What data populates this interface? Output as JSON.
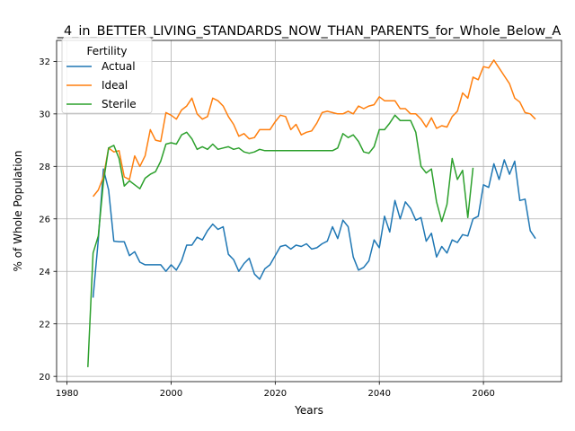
{
  "chart_data": {
    "type": "line",
    "title": "_4_in_BETTER_LIVING_STANDARDS_NOW_THAN_PARENTS_for_Whole_Below_A",
    "xlabel": "Years",
    "ylabel": "% of Whole Population",
    "xlim": [
      1978,
      2075
    ],
    "ylim": [
      19.8,
      32.8
    ],
    "xticks": [
      1980,
      2000,
      2020,
      2040,
      2060
    ],
    "yticks": [
      20,
      22,
      24,
      26,
      28,
      30,
      32
    ],
    "grid": true,
    "legend": {
      "title": "Fertility",
      "position": "top-left"
    },
    "series": [
      {
        "name": "Actual",
        "color": "#1f77b4",
        "points": [
          [
            1985,
            23.0
          ],
          [
            1986,
            25.2
          ],
          [
            1987,
            27.9
          ],
          [
            1988,
            27.1
          ],
          [
            1989,
            25.15
          ],
          [
            1990,
            25.13
          ],
          [
            1991,
            25.13
          ],
          [
            1992,
            24.6
          ],
          [
            1993,
            24.75
          ],
          [
            1994,
            24.35
          ],
          [
            1995,
            24.25
          ],
          [
            1996,
            24.25
          ],
          [
            1997,
            24.25
          ],
          [
            1998,
            24.25
          ],
          [
            1999,
            24.0
          ],
          [
            2000,
            24.25
          ],
          [
            2001,
            24.05
          ],
          [
            2002,
            24.4
          ],
          [
            2003,
            25.0
          ],
          [
            2004,
            25.0
          ],
          [
            2005,
            25.3
          ],
          [
            2006,
            25.2
          ],
          [
            2007,
            25.55
          ],
          [
            2008,
            25.8
          ],
          [
            2009,
            25.6
          ],
          [
            2010,
            25.7
          ],
          [
            2011,
            24.65
          ],
          [
            2012,
            24.45
          ],
          [
            2013,
            24.0
          ],
          [
            2014,
            24.3
          ],
          [
            2015,
            24.5
          ],
          [
            2016,
            23.9
          ],
          [
            2017,
            23.7
          ],
          [
            2018,
            24.1
          ],
          [
            2019,
            24.25
          ],
          [
            2020,
            24.6
          ],
          [
            2021,
            24.95
          ],
          [
            2022,
            25.0
          ],
          [
            2023,
            24.85
          ],
          [
            2024,
            25.0
          ],
          [
            2025,
            24.95
          ],
          [
            2026,
            25.05
          ],
          [
            2027,
            24.85
          ],
          [
            2028,
            24.9
          ],
          [
            2029,
            25.05
          ],
          [
            2030,
            25.15
          ],
          [
            2031,
            25.7
          ],
          [
            2032,
            25.25
          ],
          [
            2033,
            25.95
          ],
          [
            2034,
            25.7
          ],
          [
            2035,
            24.55
          ],
          [
            2036,
            24.05
          ],
          [
            2037,
            24.15
          ],
          [
            2038,
            24.4
          ],
          [
            2039,
            25.2
          ],
          [
            2040,
            24.9
          ],
          [
            2041,
            26.1
          ],
          [
            2042,
            25.5
          ],
          [
            2043,
            26.7
          ],
          [
            2044,
            26.0
          ],
          [
            2045,
            26.65
          ],
          [
            2046,
            26.4
          ],
          [
            2047,
            25.95
          ],
          [
            2048,
            26.05
          ],
          [
            2049,
            25.15
          ],
          [
            2050,
            25.45
          ],
          [
            2051,
            24.55
          ],
          [
            2052,
            24.95
          ],
          [
            2053,
            24.7
          ],
          [
            2054,
            25.2
          ],
          [
            2055,
            25.1
          ],
          [
            2056,
            25.4
          ],
          [
            2057,
            25.35
          ],
          [
            2058,
            26.0
          ],
          [
            2059,
            26.1
          ],
          [
            2060,
            27.3
          ],
          [
            2061,
            27.2
          ],
          [
            2062,
            28.1
          ],
          [
            2063,
            27.5
          ],
          [
            2064,
            28.25
          ],
          [
            2065,
            27.7
          ],
          [
            2066,
            28.2
          ],
          [
            2067,
            26.7
          ],
          [
            2068,
            26.75
          ],
          [
            2069,
            25.55
          ],
          [
            2070,
            25.25
          ]
        ]
      },
      {
        "name": "Ideal",
        "color": "#ff7f0e",
        "points": [
          [
            1985,
            26.85
          ],
          [
            1986,
            27.1
          ],
          [
            1987,
            27.6
          ],
          [
            1988,
            28.7
          ],
          [
            1989,
            28.55
          ],
          [
            1990,
            28.6
          ],
          [
            1991,
            27.6
          ],
          [
            1992,
            27.5
          ],
          [
            1993,
            28.4
          ],
          [
            1994,
            28.0
          ],
          [
            1995,
            28.4
          ],
          [
            1996,
            29.4
          ],
          [
            1997,
            29.0
          ],
          [
            1998,
            28.95
          ],
          [
            1999,
            30.05
          ],
          [
            2000,
            29.95
          ],
          [
            2001,
            29.8
          ],
          [
            2002,
            30.15
          ],
          [
            2003,
            30.3
          ],
          [
            2004,
            30.6
          ],
          [
            2005,
            30.0
          ],
          [
            2006,
            29.8
          ],
          [
            2007,
            29.9
          ],
          [
            2008,
            30.6
          ],
          [
            2009,
            30.5
          ],
          [
            2010,
            30.3
          ],
          [
            2011,
            29.9
          ],
          [
            2012,
            29.6
          ],
          [
            2013,
            29.15
          ],
          [
            2014,
            29.25
          ],
          [
            2015,
            29.05
          ],
          [
            2016,
            29.1
          ],
          [
            2017,
            29.4
          ],
          [
            2018,
            29.4
          ],
          [
            2019,
            29.4
          ],
          [
            2020,
            29.7
          ],
          [
            2021,
            29.95
          ],
          [
            2022,
            29.9
          ],
          [
            2023,
            29.4
          ],
          [
            2024,
            29.6
          ],
          [
            2025,
            29.2
          ],
          [
            2026,
            29.3
          ],
          [
            2027,
            29.35
          ],
          [
            2028,
            29.65
          ],
          [
            2029,
            30.05
          ],
          [
            2030,
            30.1
          ],
          [
            2031,
            30.05
          ],
          [
            2032,
            30.0
          ],
          [
            2033,
            30.0
          ],
          [
            2034,
            30.1
          ],
          [
            2035,
            30.0
          ],
          [
            2036,
            30.3
          ],
          [
            2037,
            30.2
          ],
          [
            2038,
            30.3
          ],
          [
            2039,
            30.35
          ],
          [
            2040,
            30.65
          ],
          [
            2041,
            30.5
          ],
          [
            2042,
            30.5
          ],
          [
            2043,
            30.5
          ],
          [
            2044,
            30.2
          ],
          [
            2045,
            30.2
          ],
          [
            2046,
            30.0
          ],
          [
            2047,
            30.0
          ],
          [
            2048,
            29.8
          ],
          [
            2049,
            29.5
          ],
          [
            2050,
            29.85
          ],
          [
            2051,
            29.45
          ],
          [
            2052,
            29.55
          ],
          [
            2053,
            29.5
          ],
          [
            2054,
            29.9
          ],
          [
            2055,
            30.1
          ],
          [
            2056,
            30.8
          ],
          [
            2057,
            30.6
          ],
          [
            2058,
            31.4
          ],
          [
            2059,
            31.3
          ],
          [
            2060,
            31.8
          ],
          [
            2061,
            31.75
          ],
          [
            2062,
            32.05
          ],
          [
            2063,
            31.75
          ],
          [
            2064,
            31.45
          ],
          [
            2065,
            31.15
          ],
          [
            2066,
            30.6
          ],
          [
            2067,
            30.45
          ],
          [
            2068,
            30.05
          ],
          [
            2069,
            30.0
          ],
          [
            2070,
            29.8
          ]
        ]
      },
      {
        "name": "Sterile",
        "color": "#2ca02c",
        "points": [
          [
            1984,
            20.35
          ],
          [
            1985,
            24.7
          ],
          [
            1986,
            25.35
          ],
          [
            1987,
            27.4
          ],
          [
            1988,
            28.7
          ],
          [
            1989,
            28.8
          ],
          [
            1990,
            28.3
          ],
          [
            1991,
            27.25
          ],
          [
            1992,
            27.45
          ],
          [
            1993,
            27.3
          ],
          [
            1994,
            27.15
          ],
          [
            1995,
            27.55
          ],
          [
            1996,
            27.7
          ],
          [
            1997,
            27.8
          ],
          [
            1998,
            28.2
          ],
          [
            1999,
            28.85
          ],
          [
            2000,
            28.9
          ],
          [
            2001,
            28.85
          ],
          [
            2002,
            29.2
          ],
          [
            2003,
            29.3
          ],
          [
            2004,
            29.05
          ],
          [
            2005,
            28.65
          ],
          [
            2006,
            28.75
          ],
          [
            2007,
            28.65
          ],
          [
            2008,
            28.85
          ],
          [
            2009,
            28.65
          ],
          [
            2010,
            28.7
          ],
          [
            2011,
            28.75
          ],
          [
            2012,
            28.65
          ],
          [
            2013,
            28.7
          ],
          [
            2014,
            28.55
          ],
          [
            2015,
            28.5
          ],
          [
            2016,
            28.55
          ],
          [
            2017,
            28.65
          ],
          [
            2018,
            28.6
          ],
          [
            2019,
            28.6
          ],
          [
            2020,
            28.6
          ],
          [
            2021,
            28.6
          ],
          [
            2022,
            28.6
          ],
          [
            2023,
            28.6
          ],
          [
            2024,
            28.6
          ],
          [
            2025,
            28.6
          ],
          [
            2026,
            28.6
          ],
          [
            2027,
            28.6
          ],
          [
            2028,
            28.6
          ],
          [
            2029,
            28.6
          ],
          [
            2030,
            28.6
          ],
          [
            2031,
            28.6
          ],
          [
            2032,
            28.7
          ],
          [
            2033,
            29.25
          ],
          [
            2034,
            29.1
          ],
          [
            2035,
            29.2
          ],
          [
            2036,
            28.95
          ],
          [
            2037,
            28.55
          ],
          [
            2038,
            28.5
          ],
          [
            2039,
            28.75
          ],
          [
            2040,
            29.4
          ],
          [
            2041,
            29.4
          ],
          [
            2042,
            29.65
          ],
          [
            2043,
            29.95
          ],
          [
            2044,
            29.75
          ],
          [
            2045,
            29.75
          ],
          [
            2046,
            29.75
          ],
          [
            2047,
            29.3
          ],
          [
            2048,
            28.0
          ],
          [
            2049,
            27.75
          ],
          [
            2050,
            27.9
          ],
          [
            2051,
            26.65
          ],
          [
            2052,
            25.9
          ],
          [
            2053,
            26.55
          ],
          [
            2054,
            28.3
          ],
          [
            2055,
            27.5
          ],
          [
            2056,
            27.85
          ],
          [
            2057,
            26.05
          ],
          [
            2058,
            27.95
          ]
        ]
      }
    ]
  }
}
